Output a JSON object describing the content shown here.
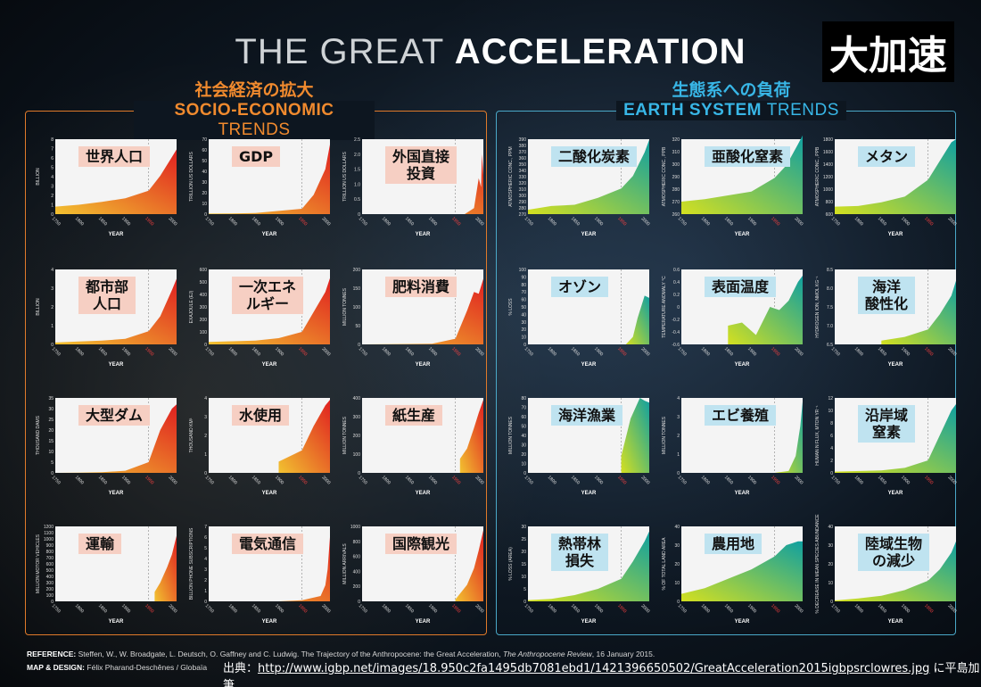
{
  "header": {
    "title_light": "THE GREAT",
    "title_bold": "ACCELERATION",
    "japanese_title": "大加速"
  },
  "sections": {
    "socio": {
      "jp": "社会経済の拡大",
      "en_bold": "SOCIO-ECONOMIC",
      "en_light": "TRENDS"
    },
    "earth": {
      "jp": "生態系への負荷",
      "en_bold": "EARTH SYSTEM",
      "en_light": "TRENDS"
    }
  },
  "footer": {
    "reference_label": "REFERENCE:",
    "reference_text": "Steffen, W., W. Broadgate, L. Deutsch, O. Gaffney and C. Ludwig. The Trajectory of the Anthropocene: the Great Acceleration,",
    "reference_journal": "The Anthropocene Review",
    "reference_date": ", 16 January 2015.",
    "design_label": "MAP & DESIGN:",
    "design_text": "Félix Pharand-Deschênes / Globaïa",
    "credit_prefix": "出典：",
    "credit_url": "http://www.igbp.net/images/18.950c2fa1495db7081ebd1/1421396650502/GreatAcceleration2015igbpsrclowres.jpg",
    "credit_suffix": " に平島加筆"
  },
  "colors": {
    "socio_low": "#f2c230",
    "socio_high": "#e02020",
    "earth_low": "#d4e020",
    "earth_high": "#10a0a0"
  },
  "chart_data": [
    {
      "type": "area",
      "group": "socio",
      "label": "世界人口",
      "ylabel": "BILLION",
      "xlabel": "YEAR",
      "xticks": [
        "1750",
        "1800",
        "1850",
        "1900",
        "1950",
        "2000"
      ],
      "yticks": [
        "0",
        "1",
        "2",
        "3",
        "4",
        "5",
        "6",
        "7",
        "8"
      ],
      "ylim": [
        0,
        8
      ],
      "x": [
        1750,
        1800,
        1850,
        1900,
        1950,
        1975,
        2000,
        2010
      ],
      "y": [
        0.8,
        1.0,
        1.3,
        1.7,
        2.5,
        4.1,
        6.1,
        6.9
      ]
    },
    {
      "type": "area",
      "group": "socio",
      "label": "GDP",
      "ylabel": "TRILLION US DOLLARS",
      "xlabel": "YEAR",
      "xticks": [
        "1750",
        "1800",
        "1850",
        "1900",
        "1950",
        "2000"
      ],
      "yticks": [
        "0",
        "10",
        "20",
        "30",
        "40",
        "50",
        "60",
        "70"
      ],
      "ylim": [
        0,
        70
      ],
      "x": [
        1750,
        1800,
        1850,
        1900,
        1950,
        1975,
        2000,
        2010
      ],
      "y": [
        0.5,
        0.7,
        1,
        3,
        5,
        18,
        42,
        65
      ]
    },
    {
      "type": "area",
      "group": "socio",
      "label": "外国直接\n投資",
      "ylabel": "TRILLION US DOLLARS",
      "xlabel": "YEAR",
      "xticks": [
        "1750",
        "1800",
        "1850",
        "1900",
        "1950",
        "2000"
      ],
      "yticks": [
        "0",
        "0.5",
        "1.0",
        "1.5",
        "2.0",
        "2.5"
      ],
      "ylim": [
        0,
        2.5
      ],
      "x": [
        1750,
        1970,
        1990,
        2000,
        2005,
        2007,
        2010
      ],
      "y": [
        0,
        0,
        0.2,
        1.2,
        0.9,
        2.0,
        1.3
      ]
    },
    {
      "type": "area",
      "group": "socio",
      "label": "都市部\n人口",
      "ylabel": "BILLION",
      "xlabel": "YEAR",
      "xticks": [
        "1750",
        "1800",
        "1850",
        "1900",
        "1950",
        "2000"
      ],
      "yticks": [
        "0",
        "1",
        "2",
        "3",
        "4"
      ],
      "ylim": [
        0,
        4
      ],
      "x": [
        1750,
        1800,
        1850,
        1900,
        1950,
        1975,
        2000,
        2010
      ],
      "y": [
        0.1,
        0.15,
        0.2,
        0.3,
        0.7,
        1.5,
        2.9,
        3.5
      ]
    },
    {
      "type": "area",
      "group": "socio",
      "label": "一次エネ\nルギー",
      "ylabel": "EXAJOULE (EJ)",
      "xlabel": "YEAR",
      "xticks": [
        "1750",
        "1800",
        "1850",
        "1900",
        "1950",
        "2000"
      ],
      "yticks": [
        "0",
        "100",
        "200",
        "300",
        "400",
        "500",
        "600"
      ],
      "ylim": [
        0,
        600
      ],
      "x": [
        1750,
        1800,
        1850,
        1900,
        1950,
        1975,
        2000,
        2010
      ],
      "y": [
        20,
        25,
        30,
        50,
        100,
        260,
        420,
        530
      ]
    },
    {
      "type": "area",
      "group": "socio",
      "label": "肥料消費",
      "ylabel": "MILLION TONNES",
      "xlabel": "YEAR",
      "xticks": [
        "1750",
        "1800",
        "1850",
        "1900",
        "1950",
        "2000"
      ],
      "yticks": [
        "0",
        "50",
        "100",
        "150",
        "200"
      ],
      "ylim": [
        0,
        200
      ],
      "x": [
        1750,
        1900,
        1950,
        1975,
        1990,
        2000,
        2010
      ],
      "y": [
        0,
        2,
        15,
        90,
        140,
        135,
        175
      ]
    },
    {
      "type": "area",
      "group": "socio",
      "label": "大型ダム",
      "ylabel": "THOUSAND DAMS",
      "xlabel": "YEAR",
      "xticks": [
        "1750",
        "1800",
        "1850",
        "1900",
        "1950",
        "2000"
      ],
      "yticks": [
        "0",
        "5",
        "10",
        "15",
        "20",
        "25",
        "30",
        "35"
      ],
      "ylim": [
        0,
        35
      ],
      "x": [
        1750,
        1800,
        1850,
        1900,
        1950,
        1975,
        2000,
        2010
      ],
      "y": [
        0,
        0.1,
        0.3,
        1,
        5,
        20,
        30,
        32
      ]
    },
    {
      "type": "area",
      "group": "socio",
      "label": "水使用",
      "ylabel": "THOUSAND KM³",
      "xlabel": "YEAR",
      "xticks": [
        "1750",
        "1800",
        "1850",
        "1900",
        "1950",
        "2000"
      ],
      "yticks": [
        "0",
        "1",
        "2",
        "3",
        "4"
      ],
      "ylim": [
        0,
        4
      ],
      "x": [
        1900,
        1950,
        1975,
        2000,
        2010
      ],
      "y": [
        0.6,
        1.2,
        2.5,
        3.6,
        3.9
      ]
    },
    {
      "type": "area",
      "group": "socio",
      "label": "紙生産",
      "ylabel": "MILLION TONNES",
      "xlabel": "YEAR",
      "xticks": [
        "1750",
        "1800",
        "1850",
        "1900",
        "1950",
        "2000"
      ],
      "yticks": [
        "0",
        "100",
        "200",
        "300",
        "400"
      ],
      "ylim": [
        0,
        400
      ],
      "x": [
        1960,
        1975,
        1990,
        2000,
        2010
      ],
      "y": [
        75,
        130,
        240,
        320,
        390
      ]
    },
    {
      "type": "area",
      "group": "socio",
      "label": "運輸",
      "ylabel": "MILLION MOTOR VEHICLES",
      "xlabel": "YEAR",
      "xticks": [
        "1750",
        "1800",
        "1850",
        "1900",
        "1950",
        "2000"
      ],
      "yticks": [
        "0",
        "100",
        "200",
        "300",
        "400",
        "500",
        "600",
        "700",
        "800",
        "900",
        "1000",
        "1100",
        "1200"
      ],
      "ylim": [
        0,
        1200
      ],
      "x": [
        1963,
        1975,
        1990,
        2000,
        2010
      ],
      "y": [
        150,
        300,
        550,
        750,
        1050
      ]
    },
    {
      "type": "area",
      "group": "socio",
      "label": "電気通信",
      "ylabel": "BILLION PHONE SUBSCRIPTIONS",
      "xlabel": "YEAR",
      "xticks": [
        "1750",
        "1800",
        "1850",
        "1900",
        "1950",
        "2000"
      ],
      "yticks": [
        "0",
        "1",
        "2",
        "3",
        "4",
        "5",
        "6",
        "7"
      ],
      "ylim": [
        0,
        7
      ],
      "x": [
        1750,
        1900,
        1950,
        1990,
        2000,
        2005,
        2010
      ],
      "y": [
        0,
        0,
        0.1,
        0.5,
        1.5,
        3,
        6
      ]
    },
    {
      "type": "area",
      "group": "socio",
      "label": "国際観光",
      "ylabel": "MILLION ARRIVALS",
      "xlabel": "YEAR",
      "xticks": [
        "1750",
        "1800",
        "1850",
        "1900",
        "1950",
        "2000"
      ],
      "yticks": [
        "0",
        "200",
        "400",
        "600",
        "800",
        "1000"
      ],
      "ylim": [
        0,
        1000
      ],
      "x": [
        1950,
        1975,
        1990,
        2000,
        2010
      ],
      "y": [
        25,
        220,
        440,
        680,
        950
      ]
    },
    {
      "type": "area",
      "group": "earth",
      "label": "二酸化炭素",
      "ylabel": "ATMOSPHERIC CONC., PPM",
      "xlabel": "YEAR",
      "xticks": [
        "1750",
        "1800",
        "1850",
        "1900",
        "1950",
        "2000"
      ],
      "yticks": [
        "270",
        "280",
        "290",
        "300",
        "310",
        "320",
        "330",
        "340",
        "350",
        "360",
        "370",
        "380",
        "390"
      ],
      "ylim": [
        270,
        390
      ],
      "x": [
        1750,
        1800,
        1850,
        1900,
        1950,
        1975,
        2000,
        2010
      ],
      "y": [
        277,
        283,
        285,
        296,
        311,
        331,
        369,
        389
      ]
    },
    {
      "type": "area",
      "group": "earth",
      "label": "亜酸化窒素",
      "ylabel": "ATMOSPHERIC CONC., PPB",
      "xlabel": "YEAR",
      "xticks": [
        "1750",
        "1800",
        "1850",
        "1900",
        "1950",
        "2000"
      ],
      "yticks": [
        "260",
        "270",
        "280",
        "290",
        "300",
        "310",
        "320"
      ],
      "ylim": [
        260,
        320
      ],
      "x": [
        1750,
        1800,
        1850,
        1900,
        1950,
        1975,
        2000,
        2010
      ],
      "y": [
        270,
        272,
        275,
        278,
        289,
        299,
        316,
        323
      ]
    },
    {
      "type": "area",
      "group": "earth",
      "label": "メタン",
      "ylabel": "ATMOSPHERIC CONC., PPB",
      "xlabel": "YEAR",
      "xticks": [
        "1750",
        "1800",
        "1850",
        "1900",
        "1950",
        "2000"
      ],
      "yticks": [
        "600",
        "800",
        "1000",
        "1200",
        "1400",
        "1600",
        "1800"
      ],
      "ylim": [
        600,
        1800
      ],
      "x": [
        1750,
        1800,
        1850,
        1900,
        1950,
        1975,
        2000,
        2010
      ],
      "y": [
        720,
        730,
        790,
        880,
        1150,
        1450,
        1750,
        1800
      ]
    },
    {
      "type": "area",
      "group": "earth",
      "label": "オゾン",
      "ylabel": "% LOSS",
      "xlabel": "YEAR",
      "xticks": [
        "1750",
        "1800",
        "1850",
        "1900",
        "1950",
        "2000"
      ],
      "yticks": [
        "0",
        "10",
        "20",
        "30",
        "40",
        "50",
        "60",
        "70",
        "80",
        "90",
        "100"
      ],
      "ylim": [
        0,
        100
      ],
      "x": [
        1960,
        1975,
        1985,
        1995,
        2000,
        2010
      ],
      "y": [
        0,
        10,
        35,
        55,
        65,
        62
      ]
    },
    {
      "type": "area",
      "group": "earth",
      "label": "表面温度",
      "ylabel": "TEMPERATURE ANOMALY °C",
      "xlabel": "YEAR",
      "xticks": [
        "1750",
        "1800",
        "1850",
        "1900",
        "1950",
        "2000"
      ],
      "yticks": [
        "-0.6",
        "-0.4",
        "-0.2",
        "0",
        "0.2",
        "0.4",
        "0.6"
      ],
      "ylim": [
        -0.6,
        0.6
      ],
      "x": [
        1850,
        1880,
        1910,
        1940,
        1960,
        1980,
        2000,
        2010
      ],
      "y": [
        -0.3,
        -0.25,
        -0.45,
        0,
        -0.05,
        0.1,
        0.4,
        0.5
      ]
    },
    {
      "type": "area",
      "group": "earth",
      "label": "海洋\n酸性化",
      "ylabel": "HYDROGEN ION, NMOL KG⁻¹",
      "xlabel": "YEAR",
      "xticks": [
        "1750",
        "1800",
        "1850",
        "1900",
        "1950",
        "2000"
      ],
      "yticks": [
        "6.5",
        "7.0",
        "7.5",
        "8.0",
        "8.5"
      ],
      "ylim": [
        6.5,
        8.5
      ],
      "x": [
        1850,
        1900,
        1950,
        1975,
        2000,
        2010
      ],
      "y": [
        6.6,
        6.7,
        6.9,
        7.3,
        7.8,
        8.2
      ]
    },
    {
      "type": "area",
      "group": "earth",
      "label": "海洋漁業",
      "ylabel": "MILLION TONNES",
      "xlabel": "YEAR",
      "xticks": [
        "1750",
        "1800",
        "1850",
        "1900",
        "1950",
        "2000"
      ],
      "yticks": [
        "0",
        "10",
        "20",
        "30",
        "40",
        "50",
        "60",
        "70",
        "80"
      ],
      "ylim": [
        0,
        80
      ],
      "x": [
        1950,
        1970,
        1990,
        2000,
        2010
      ],
      "y": [
        18,
        58,
        80,
        77,
        75
      ]
    },
    {
      "type": "area",
      "group": "earth",
      "label": "エビ養殖",
      "ylabel": "MILLION TONNES",
      "xlabel": "YEAR",
      "xticks": [
        "1750",
        "1800",
        "1850",
        "1900",
        "1950",
        "2000"
      ],
      "yticks": [
        "0",
        "1",
        "2",
        "3",
        "4"
      ],
      "ylim": [
        0,
        4
      ],
      "x": [
        1950,
        1980,
        1995,
        2005,
        2010
      ],
      "y": [
        0,
        0.1,
        0.9,
        2.5,
        3.8
      ]
    },
    {
      "type": "area",
      "group": "earth",
      "label": "沿岸域\n窒素",
      "ylabel": "HUMAN N FLUX, MTON YR⁻¹",
      "xlabel": "YEAR",
      "xticks": [
        "1750",
        "1800",
        "1850",
        "1900",
        "1950",
        "2000"
      ],
      "yticks": [
        "0",
        "2",
        "4",
        "6",
        "8",
        "10",
        "12"
      ],
      "ylim": [
        0,
        12
      ],
      "x": [
        1750,
        1850,
        1900,
        1950,
        1975,
        2000,
        2010
      ],
      "y": [
        0.2,
        0.4,
        0.8,
        2,
        6,
        10,
        11
      ]
    },
    {
      "type": "area",
      "group": "earth",
      "label": "熱帯林\n損失",
      "ylabel": "% LOSS (AREA)",
      "xlabel": "YEAR",
      "xticks": [
        "1750",
        "1800",
        "1850",
        "1900",
        "1950",
        "2000"
      ],
      "yticks": [
        "0",
        "5",
        "10",
        "15",
        "20",
        "25",
        "30"
      ],
      "ylim": [
        0,
        30
      ],
      "x": [
        1750,
        1800,
        1850,
        1900,
        1950,
        1975,
        2000,
        2010
      ],
      "y": [
        0.5,
        1,
        2.5,
        5,
        9,
        16,
        24,
        28
      ]
    },
    {
      "type": "area",
      "group": "earth",
      "label": "農用地",
      "ylabel": "% OF TOTAL LAND AREA",
      "xlabel": "YEAR",
      "xticks": [
        "1750",
        "1800",
        "1850",
        "1900",
        "1950",
        "2000"
      ],
      "yticks": [
        "0",
        "10",
        "20",
        "30",
        "40"
      ],
      "ylim": [
        0,
        40
      ],
      "x": [
        1750,
        1800,
        1850,
        1900,
        1950,
        1975,
        2000,
        2010
      ],
      "y": [
        4,
        7,
        12,
        17,
        24,
        30,
        32,
        32
      ]
    },
    {
      "type": "area",
      "group": "earth",
      "label": "陸域生物\nの減少",
      "ylabel": "% DECREASE IN MEAN SPECIES ABUNDANCE",
      "xlabel": "YEAR",
      "xticks": [
        "1750",
        "1800",
        "1850",
        "1900",
        "1950",
        "2000"
      ],
      "yticks": [
        "0",
        "10",
        "20",
        "30",
        "40"
      ],
      "ylim": [
        0,
        40
      ],
      "x": [
        1750,
        1800,
        1850,
        1900,
        1950,
        1975,
        2000,
        2010
      ],
      "y": [
        0.5,
        1.5,
        3,
        6,
        11,
        17,
        26,
        32
      ]
    }
  ]
}
